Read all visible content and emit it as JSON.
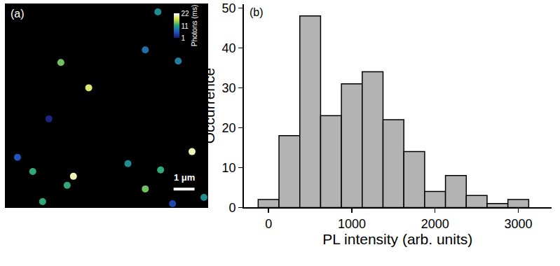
{
  "chart_data": [
    {
      "type": "scatter",
      "panel": "(a)",
      "x": [
        2.67,
        4.0,
        6.7,
        7.3,
        8.27,
        2.1,
        0.6,
        1.33,
        3.27,
        2.97,
        5.87,
        7.43,
        8.93,
        6.7,
        8.0,
        9.5,
        1.8
      ],
      "y": [
        6.9,
        5.7,
        7.5,
        9.3,
        6.97,
        4.23,
        2.4,
        1.73,
        1.5,
        1.07,
        2.1,
        1.8,
        2.67,
        0.9,
        0.2,
        0.5,
        0.3
      ],
      "photons": [
        14,
        18,
        8,
        10,
        9,
        2,
        6,
        12,
        20,
        12,
        10,
        12,
        20,
        14,
        5,
        10,
        12
      ],
      "xlim": [
        0,
        9.7
      ],
      "ylim": [
        0,
        9.7
      ],
      "tick_labels": false,
      "colorbar": {
        "title": "Photons (ms)",
        "range": [
          1,
          22
        ],
        "ticks": [
          1,
          11,
          22
        ]
      },
      "scale_bar": {
        "value": 1,
        "label": "1 μm"
      }
    },
    {
      "type": "histogram",
      "panel": "(b)",
      "bins": [
        -125,
        125,
        375,
        625,
        875,
        1125,
        1375,
        1625,
        1875,
        2125,
        2375,
        2625,
        2875,
        3125
      ],
      "values": [
        2,
        18,
        48,
        23,
        31,
        34,
        22,
        14,
        4,
        8,
        3,
        1,
        2
      ],
      "xlabel": "PL intensity (arb. units)",
      "ylabel": "Occurrence",
      "xlim": [
        -300,
        3400
      ],
      "xticks": [
        0,
        1000,
        2000,
        3000
      ],
      "ylim": [
        0,
        51
      ],
      "yticks": [
        0,
        10,
        20,
        30,
        40,
        50
      ],
      "color": "#b3b3b3"
    }
  ]
}
